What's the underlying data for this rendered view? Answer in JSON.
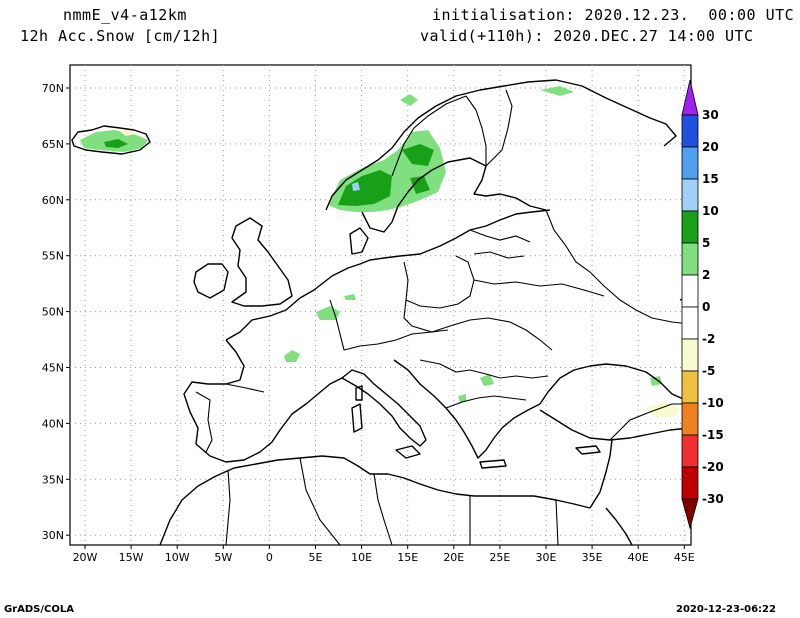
{
  "header": {
    "model": "nmmE_v4-a12km",
    "field": "12h Acc.Snow [cm/12h]",
    "init": "initialisation: 2020.12.23.  00:00 UTC",
    "valid": "valid(+110h): 2020.DEC.27 14:00 UTC"
  },
  "footer": {
    "left": "GrADS/COLA",
    "right": "2020-12-23-06:22"
  },
  "axes": {
    "lon_ticks": [
      "20W",
      "15W",
      "10W",
      "5W",
      "0",
      "5E",
      "10E",
      "15E",
      "20E",
      "25E",
      "30E",
      "35E",
      "40E",
      "45E"
    ],
    "lat_ticks": [
      "70N",
      "65N",
      "60N",
      "55N",
      "50N",
      "45N",
      "40N",
      "35N",
      "30N"
    ]
  },
  "legend": {
    "labels": [
      "30",
      "20",
      "15",
      "10",
      "5",
      "2",
      "0",
      "-2",
      "-5",
      "-10",
      "-15",
      "-20",
      "-30"
    ],
    "colors": [
      "#a020f0",
      "#2050e0",
      "#50a0f0",
      "#a0d0f8",
      "#18a018",
      "#80e080",
      "#ffffff",
      "#ffffff",
      "#fafad0",
      "#f0c040",
      "#f08020",
      "#f03030",
      "#c00000",
      "#800000"
    ]
  },
  "map_colors": {
    "light_green": "#80e080",
    "dark_green": "#18a018",
    "light_blue": "#a0d0f8",
    "pale_yellow": "#fafad0"
  }
}
